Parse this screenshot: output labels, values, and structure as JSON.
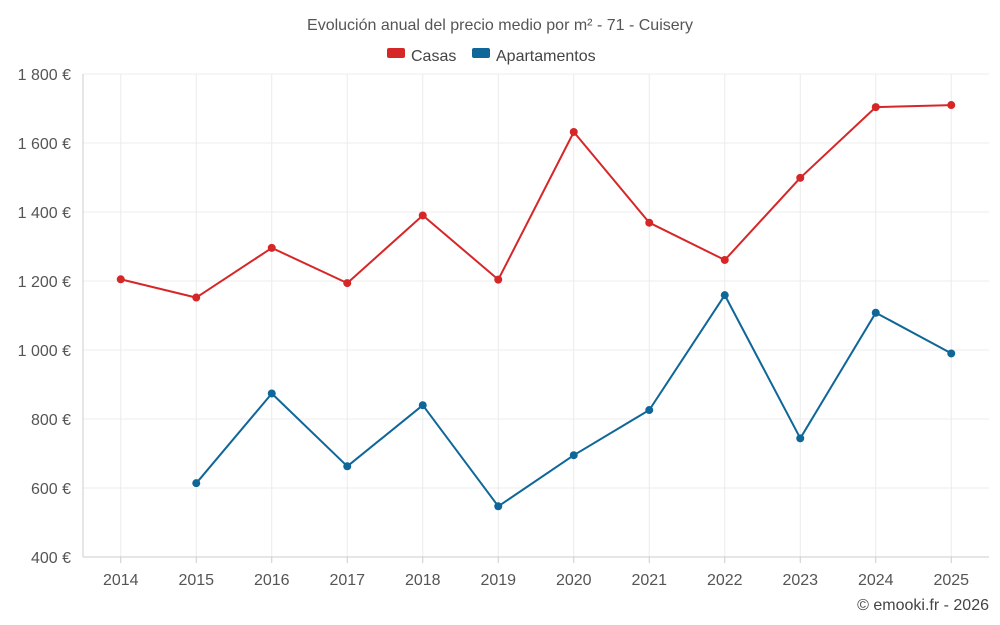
{
  "chart_data": {
    "type": "line",
    "title": "Evolución anual del precio medio por m² - 71 - Cuisery",
    "categories": [
      "2014",
      "2015",
      "2016",
      "2017",
      "2018",
      "2019",
      "2020",
      "2021",
      "2022",
      "2023",
      "2024",
      "2025"
    ],
    "series": [
      {
        "name": "Casas",
        "color": "#d62728",
        "values": [
          1205,
          1152,
          1296,
          1194,
          1390,
          1204,
          1632,
          1369,
          1261,
          1499,
          1704,
          1710
        ]
      },
      {
        "name": "Apartamentos",
        "color": "#0f6699",
        "values": [
          null,
          614,
          874,
          663,
          840,
          547,
          695,
          826,
          1159,
          744,
          1108,
          990
        ]
      }
    ],
    "ylim": [
      400,
      1800
    ],
    "yticks": [
      400,
      600,
      800,
      1000,
      1200,
      1400,
      1600,
      1800
    ],
    "ytick_labels": [
      "400 €",
      "600 €",
      "800 €",
      "1 000 €",
      "1 200 €",
      "1 400 €",
      "1 600 €",
      "1 800 €"
    ],
    "xlabel": "",
    "ylabel": "",
    "grid": true,
    "legend_position": "top-center"
  },
  "credit": "© emooki.fr - 2026"
}
